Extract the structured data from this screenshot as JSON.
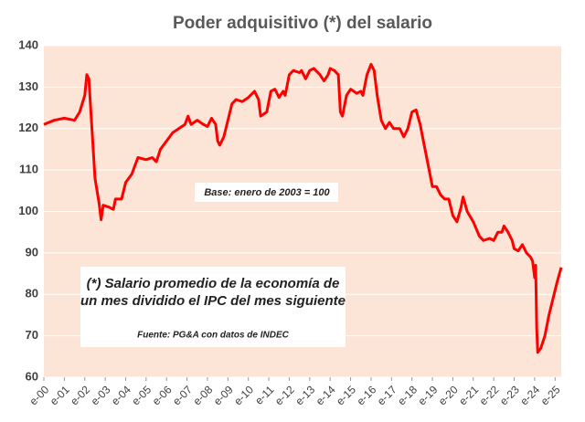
{
  "chart_data": {
    "type": "line",
    "title": "Poder adquisitivo (*) del salario",
    "annotations": [
      "Base: enero de 2003 = 100",
      "(*) Salario promedio de la economía de",
      "un mes dividido el IPC del mes siguiente",
      "Fuente: PG&A con datos de INDEC"
    ],
    "xlim": [
      2000,
      2025.3
    ],
    "ylim": [
      60,
      140
    ],
    "yticks": [
      60,
      70,
      80,
      90,
      100,
      110,
      120,
      130,
      140
    ],
    "grid": true,
    "xticks": [
      {
        "value": 2000,
        "label": "e-00"
      },
      {
        "value": 2001,
        "label": "e-01"
      },
      {
        "value": 2002,
        "label": "e-02"
      },
      {
        "value": 2003,
        "label": "e-03"
      },
      {
        "value": 2004,
        "label": "e-04"
      },
      {
        "value": 2005,
        "label": "e-05"
      },
      {
        "value": 2006,
        "label": "e-06"
      },
      {
        "value": 2007,
        "label": "e-07"
      },
      {
        "value": 2008,
        "label": "e-08"
      },
      {
        "value": 2009,
        "label": "e-09"
      },
      {
        "value": 2010,
        "label": "e-10"
      },
      {
        "value": 2011,
        "label": "e-11"
      },
      {
        "value": 2012,
        "label": "e-12"
      },
      {
        "value": 2013,
        "label": "e-13"
      },
      {
        "value": 2014,
        "label": "e-14"
      },
      {
        "value": 2015,
        "label": "e-15"
      },
      {
        "value": 2016,
        "label": "e-16"
      },
      {
        "value": 2017,
        "label": "e-17"
      },
      {
        "value": 2018,
        "label": "e-18"
      },
      {
        "value": 2019,
        "label": "e-19"
      },
      {
        "value": 2020,
        "label": "e-20"
      },
      {
        "value": 2021,
        "label": "e-21"
      },
      {
        "value": 2022,
        "label": "e-22"
      },
      {
        "value": 2023,
        "label": "e-23"
      },
      {
        "value": 2024,
        "label": "e-24"
      },
      {
        "value": 2025,
        "label": "e-25"
      }
    ],
    "series": [
      {
        "color": "#ff0000",
        "x": [
          2000.0,
          2000.5,
          2001.0,
          2001.5,
          2001.75,
          2002.0,
          2002.1,
          2002.2,
          2002.35,
          2002.5,
          2002.7,
          2002.8,
          2002.9,
          2003.2,
          2003.4,
          2003.5,
          2003.8,
          2004.0,
          2004.3,
          2004.6,
          2005.0,
          2005.3,
          2005.5,
          2005.7,
          2006.0,
          2006.3,
          2006.6,
          2006.9,
          2007.05,
          2007.2,
          2007.5,
          2007.8,
          2008.0,
          2008.2,
          2008.4,
          2008.5,
          2008.6,
          2008.8,
          2009.0,
          2009.2,
          2009.4,
          2009.7,
          2010.0,
          2010.3,
          2010.5,
          2010.6,
          2010.9,
          2011.1,
          2011.3,
          2011.5,
          2011.7,
          2011.8,
          2012.0,
          2012.2,
          2012.5,
          2012.6,
          2012.8,
          2013.0,
          2013.2,
          2013.5,
          2013.7,
          2013.9,
          2014.0,
          2014.2,
          2014.4,
          2014.5,
          2014.6,
          2014.8,
          2015.0,
          2015.3,
          2015.5,
          2015.6,
          2015.8,
          2016.0,
          2016.15,
          2016.3,
          2016.5,
          2016.7,
          2016.9,
          2017.1,
          2017.4,
          2017.6,
          2017.8,
          2018.0,
          2018.2,
          2018.4,
          2018.6,
          2018.8,
          2019.0,
          2019.2,
          2019.4,
          2019.6,
          2019.8,
          2020.0,
          2020.2,
          2020.4,
          2020.5,
          2020.7,
          2021.0,
          2021.3,
          2021.5,
          2021.8,
          2022.0,
          2022.2,
          2022.4,
          2022.5,
          2022.7,
          2022.9,
          2023.0,
          2023.2,
          2023.4,
          2023.6,
          2023.8,
          2023.9,
          2024.0,
          2024.05,
          2024.1,
          2024.15,
          2024.3,
          2024.5,
          2024.7,
          2024.9,
          2025.1,
          2025.3
        ],
        "values": [
          121,
          122,
          122.5,
          122,
          124,
          128,
          133,
          132,
          120,
          108,
          102,
          98,
          101.5,
          101,
          100.5,
          103,
          103,
          107,
          109,
          113,
          112.5,
          113,
          112,
          115,
          117,
          119,
          120,
          121,
          123,
          121,
          122,
          121,
          120.5,
          122.5,
          121,
          117,
          116,
          118,
          122,
          126,
          127,
          126.5,
          127.5,
          129,
          127,
          123,
          124,
          129,
          129.5,
          127.5,
          129,
          128,
          133,
          134,
          133.5,
          134,
          132,
          134,
          134.5,
          133,
          131.5,
          133,
          134.5,
          134,
          133,
          124,
          123,
          128,
          129.5,
          128.5,
          129,
          128,
          133,
          135.5,
          134,
          128,
          122,
          120,
          121.5,
          120,
          120,
          118,
          120,
          124,
          124.5,
          121,
          116,
          111,
          106,
          106,
          104,
          103,
          103,
          99,
          97.5,
          101,
          103.5,
          100,
          97.5,
          94,
          93,
          93.5,
          93,
          95,
          95,
          96.5,
          95,
          93,
          91,
          90.5,
          92,
          90,
          89,
          88,
          84,
          87,
          72,
          66,
          67,
          70,
          75,
          79,
          83,
          86.5
        ]
      }
    ]
  }
}
